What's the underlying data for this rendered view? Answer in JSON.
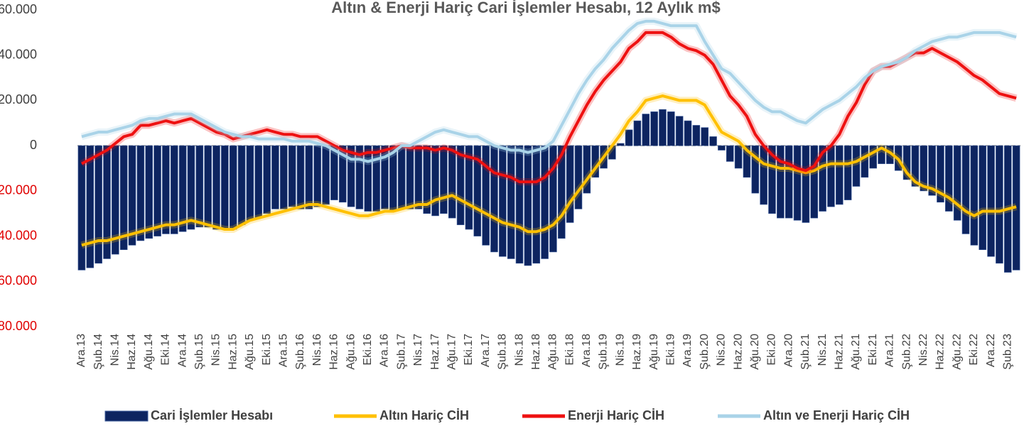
{
  "chart_data": {
    "type": "bar-line",
    "title": "Altın & Enerji Hariç Cari İşlemler Hesabı, 12 Aylık m$",
    "categories": [
      "Ara.13",
      null,
      "Şub.14",
      null,
      "Nis.14",
      null,
      "Haz.14",
      null,
      "Ağu.14",
      null,
      "Eki.14",
      null,
      "Ara.14",
      null,
      "Şub.15",
      null,
      "Nis.15",
      null,
      "Haz.15",
      null,
      "Ağu.15",
      null,
      "Eki.15",
      null,
      "Ara.15",
      null,
      "Şub.16",
      null,
      "Nis.16",
      null,
      "Haz.16",
      null,
      "Ağu.16",
      null,
      "Eki.16",
      null,
      "Ara.16",
      null,
      "Şub.17",
      null,
      "Nis.17",
      null,
      "Haz.17",
      null,
      "Ağu.17",
      null,
      "Eki.17",
      null,
      "Ara.17",
      null,
      "Şub.18",
      null,
      "Nis.18",
      null,
      "Haz.18",
      null,
      "Ağu.18",
      null,
      "Eki.18",
      null,
      "Ara.18",
      null,
      "Şub.19",
      null,
      "Nis.19",
      null,
      "Haz.19",
      null,
      "Ağu.19",
      null,
      "Eki.19",
      null,
      "Ara.19",
      null,
      "Şub.20",
      null,
      "Nis.20",
      null,
      "Haz.20",
      null,
      "Ağu.20",
      null,
      "Eki.20",
      null,
      "Ara.20",
      null,
      "Şub.21",
      null,
      "Nis.21",
      null,
      "Haz.21",
      null,
      "Ağu.21",
      null,
      "Eki.21",
      null,
      "Ara.21",
      null,
      "Şub.22",
      null,
      "Nis.22",
      null,
      "Haz.22",
      null,
      "Ağu.22",
      null,
      "Eki.22",
      null,
      "Ara.22",
      null,
      "Şub.23",
      null
    ],
    "series": [
      {
        "name": "Cari İşlemler Hesabı",
        "type": "bar",
        "color": "#0d2460",
        "values": [
          -55000,
          -54000,
          -52000,
          -50000,
          -48000,
          -46000,
          -44000,
          -42000,
          -41000,
          -40000,
          -39000,
          -39000,
          -38000,
          -37000,
          -36000,
          -36000,
          -37000,
          -37000,
          -37000,
          -35000,
          -33000,
          -32000,
          -30000,
          -28000,
          -28000,
          -27000,
          -28000,
          -28000,
          -27000,
          -26000,
          -24000,
          -25000,
          -27000,
          -28000,
          -29000,
          -29000,
          -28000,
          -29000,
          -28000,
          -28000,
          -28000,
          -30000,
          -31000,
          -30000,
          -32000,
          -35000,
          -37000,
          -40000,
          -44000,
          -47000,
          -49000,
          -50000,
          -52000,
          -53000,
          -52000,
          -50000,
          -47000,
          -41000,
          -34000,
          -28000,
          -21000,
          -14000,
          -10000,
          -6000,
          1000,
          7000,
          11000,
          14000,
          15000,
          16000,
          15000,
          13000,
          11000,
          9000,
          8000,
          4000,
          -2000,
          -7000,
          -10000,
          -14000,
          -21000,
          -26000,
          -30000,
          -32000,
          -32000,
          -33000,
          -34000,
          -32000,
          -29000,
          -27000,
          -26000,
          -24000,
          -18000,
          -14000,
          -10000,
          -8000,
          -8000,
          -11000,
          -15000,
          -18000,
          -20000,
          -22000,
          -25000,
          -29000,
          -33000,
          -39000,
          -44000,
          -46000,
          -49000,
          -52000,
          -56000,
          -55000
        ]
      },
      {
        "name": "Altın Hariç CİH",
        "type": "line",
        "color": "#ffc000",
        "values": [
          -44000,
          -43000,
          -42000,
          -42000,
          -41000,
          -40000,
          -39000,
          -38000,
          -37000,
          -36000,
          -35000,
          -35000,
          -34000,
          -33000,
          -34000,
          -35000,
          -36000,
          -37000,
          -37000,
          -35000,
          -33000,
          -32000,
          -31000,
          -30000,
          -29000,
          -28000,
          -27000,
          -26000,
          -26000,
          -27000,
          -28000,
          -29000,
          -30000,
          -31000,
          -31000,
          -30000,
          -29000,
          -29000,
          -28000,
          -27000,
          -26000,
          -26000,
          -24000,
          -23000,
          -22000,
          -24000,
          -26000,
          -28000,
          -30000,
          -32000,
          -34000,
          -35000,
          -36000,
          -38000,
          -38000,
          -37000,
          -35000,
          -31000,
          -25000,
          -20000,
          -15000,
          -10000,
          -5000,
          0,
          5000,
          11000,
          15000,
          20000,
          21000,
          22000,
          21000,
          20000,
          20000,
          20000,
          18000,
          12000,
          6000,
          4000,
          2000,
          -2000,
          -5000,
          -8000,
          -9000,
          -10000,
          -10000,
          -11000,
          -12000,
          -11000,
          -9000,
          -8000,
          -8000,
          -8000,
          -7000,
          -5000,
          -3000,
          -1000,
          -3000,
          -6000,
          -12000,
          -16000,
          -18000,
          -19000,
          -21000,
          -23000,
          -26000,
          -29000,
          -31000,
          -29000,
          -29000,
          -29000,
          -28000,
          -27000
        ]
      },
      {
        "name": "Enerji Hariç CİH",
        "type": "line",
        "color": "#ee1111",
        "values": [
          -8000,
          -6000,
          -4000,
          -2000,
          1000,
          4000,
          5000,
          9000,
          9000,
          10000,
          11000,
          10000,
          11000,
          12000,
          10000,
          8000,
          6000,
          5000,
          3000,
          4000,
          5000,
          6000,
          7000,
          6000,
          5000,
          5000,
          4000,
          4000,
          4000,
          2000,
          0,
          -2000,
          -3000,
          -4000,
          -3000,
          -3000,
          -2000,
          -1000,
          0,
          -1000,
          -1000,
          -1000,
          -2000,
          -1000,
          -2000,
          -4000,
          -5000,
          -6000,
          -9000,
          -12000,
          -13000,
          -14000,
          -16000,
          -16000,
          -16000,
          -14000,
          -10000,
          -4000,
          4000,
          11000,
          18000,
          24000,
          29000,
          33000,
          37000,
          43000,
          46000,
          50000,
          50000,
          50000,
          48000,
          45000,
          43000,
          42000,
          40000,
          36000,
          29000,
          22000,
          18000,
          13000,
          5000,
          0,
          -4000,
          -7000,
          -8000,
          -10000,
          -11000,
          -9000,
          -3000,
          0,
          5000,
          13000,
          19000,
          27000,
          33000,
          35000,
          35000,
          37000,
          39000,
          41000,
          41000,
          43000,
          41000,
          39000,
          37000,
          34000,
          31000,
          29000,
          26000,
          23000,
          22000,
          21000
        ]
      },
      {
        "name": "Altın ve Enerji Hariç CİH",
        "type": "line",
        "color": "#a9d3e8",
        "values": [
          4000,
          5000,
          6000,
          6000,
          7000,
          8000,
          9000,
          11000,
          12000,
          12000,
          13000,
          14000,
          14000,
          14000,
          12000,
          10000,
          8000,
          6000,
          5000,
          4000,
          4000,
          3000,
          3000,
          3000,
          3000,
          2000,
          2000,
          2000,
          1000,
          0,
          -2000,
          -4000,
          -6000,
          -6000,
          -7000,
          -6000,
          -5000,
          -3000,
          0,
          0,
          2000,
          4000,
          6000,
          7000,
          6000,
          5000,
          4000,
          4000,
          2000,
          0,
          -1000,
          -2000,
          -2000,
          -3000,
          -2000,
          -1000,
          2000,
          9000,
          16000,
          23000,
          29000,
          34000,
          38000,
          43000,
          47000,
          51000,
          54000,
          55000,
          55000,
          54000,
          53000,
          53000,
          53000,
          53000,
          46000,
          40000,
          34000,
          32000,
          28000,
          24000,
          20000,
          17000,
          15000,
          15000,
          13000,
          11000,
          10000,
          13000,
          16000,
          18000,
          20000,
          23000,
          26000,
          30000,
          33000,
          35000,
          36000,
          37000,
          39000,
          42000,
          44000,
          46000,
          47000,
          48000,
          48000,
          49000,
          50000,
          50000,
          50000,
          50000,
          49000,
          48000
        ]
      }
    ],
    "ylim": [
      -80000,
      60000
    ],
    "yticks": [
      {
        "value": -80000,
        "label": "-80.000"
      },
      {
        "value": -60000,
        "label": "-60.000"
      },
      {
        "value": -40000,
        "label": "-40.000"
      },
      {
        "value": -20000,
        "label": "-20.000"
      },
      0,
      {
        "value": 20000,
        "label": "20.000"
      },
      {
        "value": 40000,
        "label": "40.000"
      },
      {
        "value": 60000,
        "label": "60.000"
      }
    ],
    "legend": "bottom"
  }
}
